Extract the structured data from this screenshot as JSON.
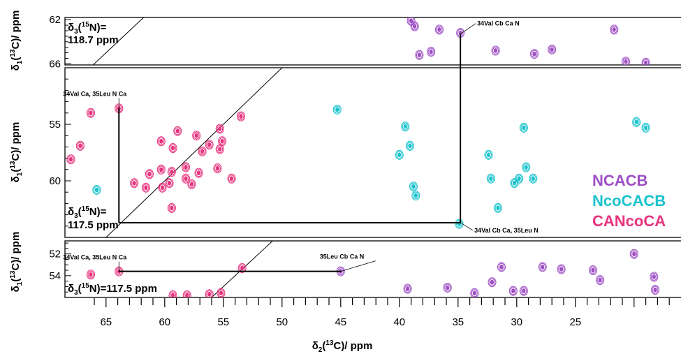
{
  "chart_data": {
    "type": "scatter",
    "x_axis": {
      "label_main": "δ",
      "label_sub": "2",
      "label_sup": "13",
      "label_rest": "C)/ ppm",
      "label_open": "(",
      "ticks": [
        65,
        60,
        55,
        50,
        45,
        40,
        35,
        30,
        25
      ],
      "range": [
        68.5,
        16.0
      ],
      "reversed": true
    },
    "legend": [
      {
        "label": "NCACB",
        "color": "#9e4fc4"
      },
      {
        "label": "NcoCACB",
        "color": "#19c3cc"
      },
      {
        "label": "CANcoCA",
        "color": "#e8337e"
      }
    ],
    "panels": [
      {
        "id": "top",
        "y_label": {
          "main": "δ",
          "sub": "1",
          "sup": "13",
          "rest": "C)/ ppm",
          "open": "("
        },
        "y_range": [
          61.8,
          66.1
        ],
        "y_ticks": [
          62,
          66
        ],
        "plane_label": [
          "δ3(15N)=",
          "118.7 ppm"
        ],
        "plane_parts": {
          "main": "δ",
          "sub": "3",
          "sup": "15",
          "rest": "N)=",
          "open": "(",
          "value": "118.7 ppm"
        },
        "annotations": [
          {
            "text": "34Val Cb Ca N",
            "x": 34.8,
            "y": 63.3
          }
        ],
        "peaks": {
          "NCACB": [
            [
              39,
              62.1
            ],
            [
              38.7,
              62.6
            ],
            [
              36.6,
              62.9
            ],
            [
              34.8,
              63.2
            ],
            [
              38.3,
              65.2
            ],
            [
              37.3,
              64.9
            ],
            [
              31.8,
              64.8
            ],
            [
              28.5,
              65.1
            ],
            [
              27,
              64.7
            ],
            [
              21.7,
              62.9
            ],
            [
              20.7,
              65.8
            ],
            [
              19,
              65.9
            ]
          ]
        }
      },
      {
        "id": "middle",
        "y_label": {
          "main": "δ",
          "sub": "1",
          "sup": "13",
          "rest": "C)/ ppm",
          "open": "("
        },
        "y_range": [
          50.0,
          65.0
        ],
        "y_ticks": [
          55,
          60
        ],
        "plane_label": [
          "δ3(15N)=",
          "117.5 ppm"
        ],
        "plane_parts": {
          "main": "δ",
          "sub": "3",
          "sup": "15",
          "rest": "N)=",
          "open": "(",
          "value": "117.5 ppm"
        },
        "annotations": [
          {
            "text": "34Val Ca, 35Leu N Ca",
            "x": 63.9,
            "y": 53.6
          },
          {
            "text": "34Val Cb Ca, 35Leu N",
            "x": 34.8,
            "y": 63.7
          }
        ],
        "peaks": {
          "NcoCACB": [
            [
              45.3,
              53.7
            ],
            [
              39.5,
              55.2
            ],
            [
              39.1,
              56.9
            ],
            [
              40,
              57.7
            ],
            [
              38.8,
              60.5
            ],
            [
              38.6,
              61.3
            ],
            [
              32.4,
              57.7
            ],
            [
              32.2,
              59.8
            ],
            [
              31.6,
              62.4
            ],
            [
              29.4,
              55.3
            ],
            [
              29.2,
              58.8
            ],
            [
              29.8,
              59.8
            ],
            [
              30.2,
              60.2
            ],
            [
              28.6,
              59.8
            ],
            [
              19.8,
              54.8
            ],
            [
              19,
              55.3
            ],
            [
              34.9,
              63.8
            ],
            [
              65.8,
              60.8
            ]
          ],
          "CANcoCA": [
            [
              63.9,
              53.6
            ],
            [
              66.3,
              54
            ],
            [
              67.2,
              56.9
            ],
            [
              68,
              58.1
            ],
            [
              58.9,
              55.6
            ],
            [
              60.3,
              56.5
            ],
            [
              57.3,
              56
            ],
            [
              55.3,
              55.4
            ],
            [
              55.1,
              56.5
            ],
            [
              55.3,
              57.2
            ],
            [
              59.3,
              57.1
            ],
            [
              56.8,
              57.4
            ],
            [
              58.2,
              58.8
            ],
            [
              59.4,
              59.2
            ],
            [
              60.3,
              59
            ],
            [
              61.3,
              59.4
            ],
            [
              58.2,
              59.8
            ],
            [
              57.1,
              59.3
            ],
            [
              55.5,
              58.9
            ],
            [
              59.6,
              60.2
            ],
            [
              61.6,
              60.6
            ],
            [
              62.6,
              60.2
            ],
            [
              60.2,
              60.6
            ],
            [
              59.4,
              62.4
            ],
            [
              57.7,
              60.3
            ],
            [
              54.3,
              59.8
            ],
            [
              56.2,
              56.8
            ],
            [
              53.5,
              54.3
            ]
          ]
        }
      },
      {
        "id": "bottom",
        "y_label": {
          "main": "δ",
          "sub": "1",
          "sup": "13",
          "rest": "C)/ ppm",
          "open": "("
        },
        "y_range": [
          50.8,
          56.0
        ],
        "y_ticks": [
          52,
          54
        ],
        "plane_label": [
          "δ3(15N)=117.5 ppm"
        ],
        "plane_parts": {
          "main": "δ",
          "sub": "3",
          "sup": "15",
          "rest": "N)=",
          "open": "(",
          "value": "117.5 ppm"
        },
        "annotations": [
          {
            "text": "34Val Ca, 35Leu N Ca",
            "x": 63.9,
            "y": 53.6
          },
          {
            "text": "35Leu Cb Ca N",
            "x": 45.0,
            "y": 53.6
          }
        ],
        "peaks": {
          "NCACB": [
            [
              45,
              53.6
            ],
            [
              39.3,
              55.2
            ],
            [
              35.9,
              55.1
            ],
            [
              33.6,
              55.6
            ],
            [
              32.1,
              54.6
            ],
            [
              30.3,
              55.4
            ],
            [
              29.4,
              55.4
            ],
            [
              31.3,
              53.2
            ],
            [
              27.8,
              53.2
            ],
            [
              26.2,
              53.4
            ],
            [
              23.5,
              53.5
            ],
            [
              22.9,
              54.4
            ],
            [
              20,
              52
            ],
            [
              18.3,
              54.1
            ],
            [
              18.2,
              55.3
            ]
          ],
          "CANcoCA": [
            [
              63.9,
              53.6
            ],
            [
              66.3,
              53.9
            ],
            [
              59.3,
              55.8
            ],
            [
              58.1,
              55.8
            ],
            [
              55.2,
              55.6
            ],
            [
              56.2,
              55.7
            ],
            [
              53.4,
              53.3
            ]
          ]
        }
      }
    ]
  }
}
